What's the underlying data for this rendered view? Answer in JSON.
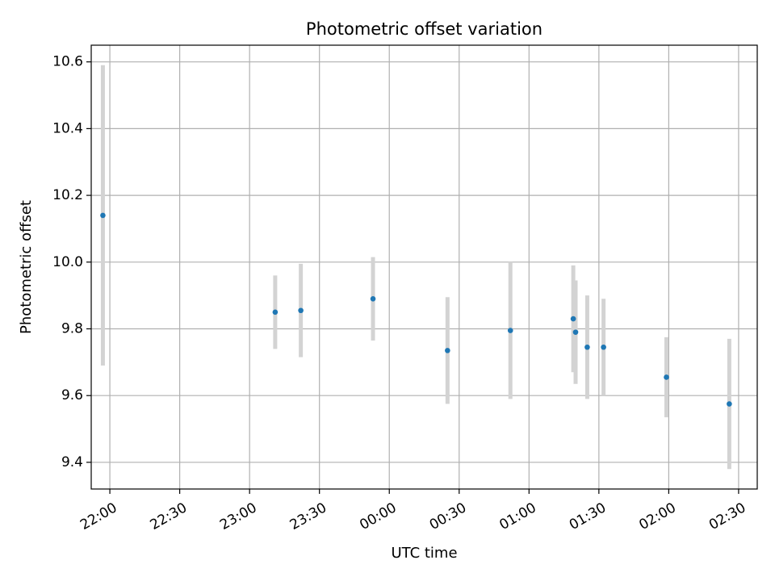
{
  "chart_data": {
    "type": "scatter",
    "title": "Photometric offset variation",
    "xlabel": "UTC time",
    "ylabel": "Photometric offset",
    "grid": true,
    "x_tick_labels": [
      "22:00",
      "22:30",
      "23:00",
      "23:30",
      "00:00",
      "00:30",
      "01:00",
      "01:30",
      "02:00",
      "02:30"
    ],
    "y_tick_labels": [
      "9.4",
      "9.6",
      "9.8",
      "10.0",
      "10.2",
      "10.4",
      "10.6"
    ],
    "xlim": [
      "21:52",
      "02:38"
    ],
    "ylim": [
      9.32,
      10.65
    ],
    "colors": {
      "points": "#1f77b4",
      "error_bars": "#d3d3d3",
      "grid": "#b0b0b0"
    },
    "points": [
      {
        "time": "21:57",
        "y": 10.14,
        "error": 0.45
      },
      {
        "time": "23:11",
        "y": 9.85,
        "error": 0.11
      },
      {
        "time": "23:22",
        "y": 9.855,
        "error": 0.14
      },
      {
        "time": "23:53",
        "y": 9.89,
        "error": 0.125
      },
      {
        "time": "00:25",
        "y": 9.735,
        "error": 0.16
      },
      {
        "time": "00:52",
        "y": 9.795,
        "error": 0.205
      },
      {
        "time": "01:19",
        "y": 9.83,
        "error": 0.16
      },
      {
        "time": "01:20",
        "y": 9.79,
        "error": 0.155
      },
      {
        "time": "01:25",
        "y": 9.745,
        "error": 0.155
      },
      {
        "time": "01:32",
        "y": 9.745,
        "error": 0.145
      },
      {
        "time": "01:59",
        "y": 9.655,
        "error": 0.12
      },
      {
        "time": "02:26",
        "y": 9.575,
        "error": 0.195
      }
    ]
  }
}
